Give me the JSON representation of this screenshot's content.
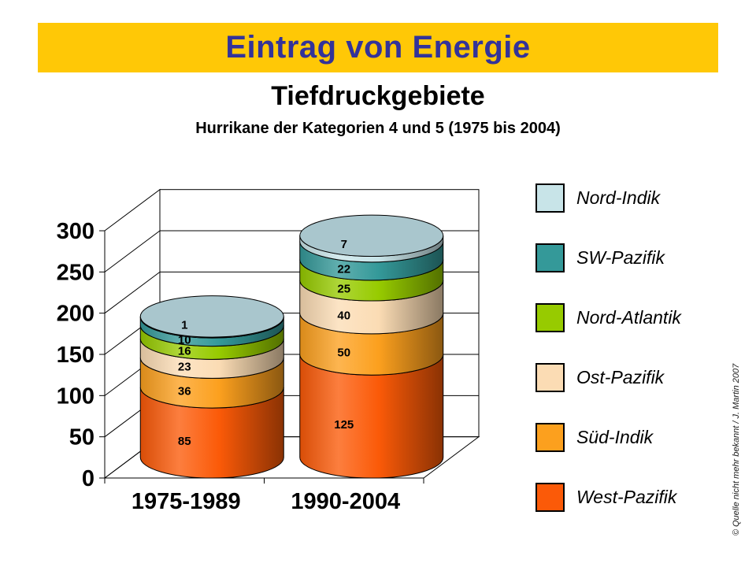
{
  "header": {
    "title": "Eintrag von Energie",
    "subtitle": "Tiefdruckgebiete",
    "subsubtitle": "Hurrikane der Kategorien 4 und 5 (1975 bis 2004)",
    "banner_color": "#ffc806",
    "title_color": "#333399"
  },
  "chart_data": {
    "type": "bar",
    "subtype": "3d-stacked-cylinder",
    "categories": [
      "1975-1989",
      "1990-2004"
    ],
    "series": [
      {
        "name": "West-Pazifik",
        "color": "#fb5a08",
        "values": [
          85,
          125
        ]
      },
      {
        "name": "Süd-Indik",
        "color": "#fca01e",
        "values": [
          36,
          50
        ]
      },
      {
        "name": "Ost-Pazifik",
        "color": "#fbdcb4",
        "values": [
          23,
          40
        ]
      },
      {
        "name": "Nord-Atlantik",
        "color": "#97cb00",
        "values": [
          16,
          25
        ]
      },
      {
        "name": "SW-Pazifik",
        "color": "#349999",
        "values": [
          10,
          22
        ]
      },
      {
        "name": "Nord-Indik",
        "color": "#c8e4e8",
        "values": [
          1,
          7
        ]
      }
    ],
    "y_axis": {
      "min": 0,
      "max": 300,
      "step": 50,
      "tick_labels": [
        "0",
        "50",
        "100",
        "150",
        "200",
        "250",
        "300"
      ]
    },
    "data_labels_shown": true,
    "legend": {
      "position": "right",
      "order_top_to_bottom": [
        "Nord-Indik",
        "SW-Pazifik",
        "Nord-Atlantik",
        "Ost-Pazifik",
        "Süd-Indik",
        "West-Pazifik"
      ]
    },
    "top_face_color": "#a9c6cd",
    "floor_color": "#8f8f8f",
    "wall_color": "#ffffff",
    "gridline_color": "#000000"
  },
  "footer": {
    "copyright": "© Quelle nicht mehr bekannt  /  J. Martin 2007"
  }
}
